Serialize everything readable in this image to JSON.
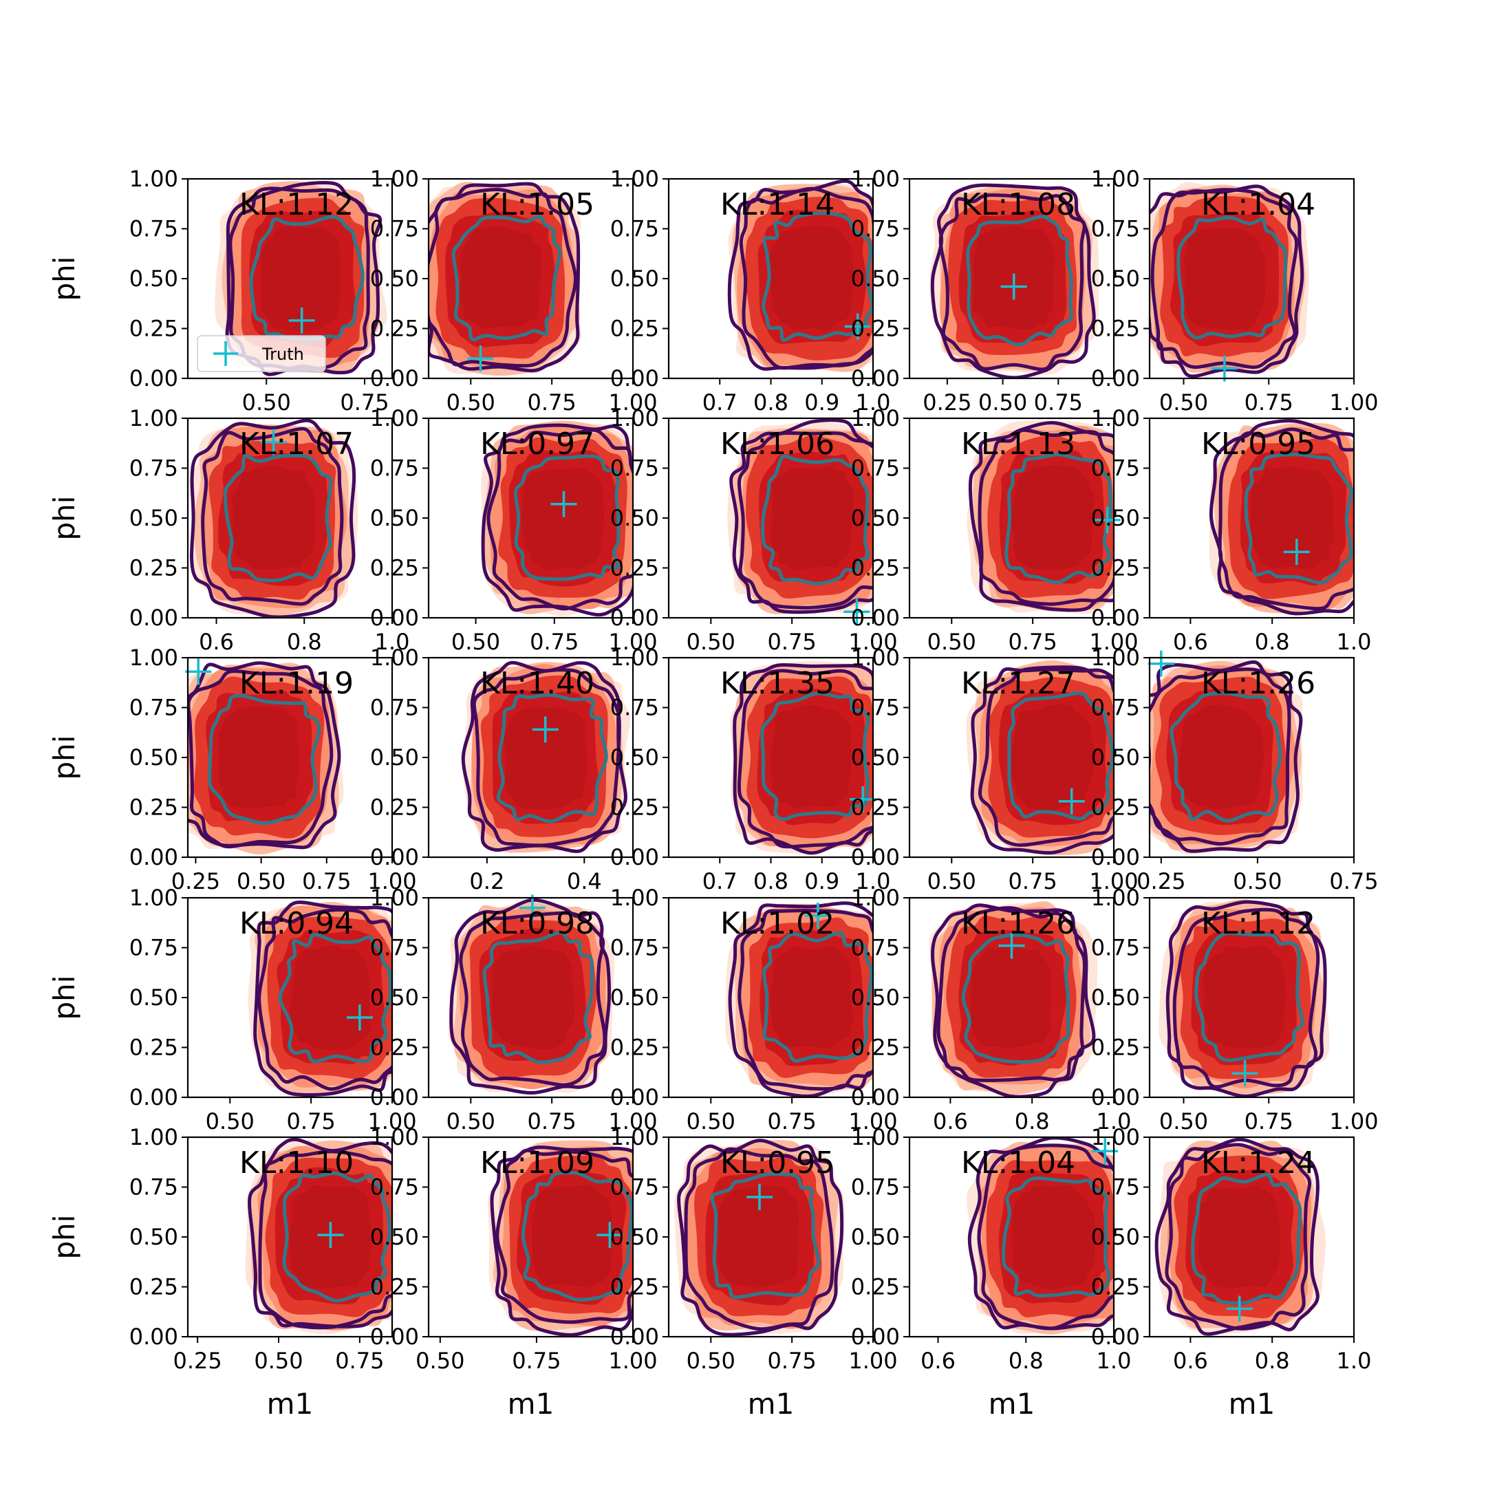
{
  "figure": {
    "legend_label": "Truth",
    "colors": {
      "kde_fill": [
        "#fee5d9",
        "#fcbba1",
        "#fc9272",
        "#e3382c",
        "#cb181d",
        "#bd1519"
      ],
      "outer_contours": "#440a5e",
      "inner_contour": "#2d7a8c",
      "truth_marker": "#17becf"
    }
  },
  "chart_data": [
    {
      "type": "contour",
      "kl_label": "KL:1.12",
      "xlabel": "",
      "ylabel": "phi",
      "xticks": [
        "0.50",
        "0.75"
      ],
      "xlim": [
        0.3,
        0.82
      ],
      "ylim": [
        0,
        1
      ],
      "yticks": [
        "0.00",
        "0.25",
        "0.50",
        "0.75",
        "1.00"
      ],
      "truth": {
        "x": 0.59,
        "y": 0.29
      },
      "legend": true
    },
    {
      "type": "contour",
      "kl_label": "KL:1.05",
      "xlabel": "",
      "ylabel": "",
      "xticks": [
        "0.50",
        "0.75",
        "1.00"
      ],
      "xlim": [
        0.37,
        1.0
      ],
      "ylim": [
        0,
        1
      ],
      "yticks": [
        "0.00",
        "0.25",
        "0.50",
        "0.75",
        "1.00"
      ],
      "truth": {
        "x": 0.53,
        "y": 0.1
      }
    },
    {
      "type": "contour",
      "kl_label": "KL:1.14",
      "xlabel": "",
      "ylabel": "",
      "xticks": [
        "0.7",
        "0.8",
        "0.9",
        "1.0"
      ],
      "xlim": [
        0.6,
        1.0
      ],
      "ylim": [
        0,
        1
      ],
      "yticks": [
        "0.00",
        "0.25",
        "0.50",
        "0.75",
        "1.00"
      ],
      "truth": {
        "x": 0.97,
        "y": 0.26
      }
    },
    {
      "type": "contour",
      "kl_label": "KL:1.08",
      "xlabel": "",
      "ylabel": "",
      "xticks": [
        "0.25",
        "0.50",
        "0.75"
      ],
      "xlim": [
        0.08,
        1.0
      ],
      "ylim": [
        0,
        1
      ],
      "yticks": [
        "0.00",
        "0.25",
        "0.50",
        "0.75",
        "1.00"
      ],
      "truth": {
        "x": 0.55,
        "y": 0.46
      }
    },
    {
      "type": "contour",
      "kl_label": "KL:1.04",
      "xlabel": "",
      "ylabel": "",
      "xticks": [
        "0.50",
        "0.75",
        "1.00"
      ],
      "xlim": [
        0.4,
        1.0
      ],
      "ylim": [
        0,
        1
      ],
      "yticks": [
        "0.00",
        "0.25",
        "0.50",
        "0.75",
        "1.00"
      ],
      "truth": {
        "x": 0.62,
        "y": 0.05
      }
    },
    {
      "type": "contour",
      "kl_label": "KL:1.07",
      "xlabel": "",
      "ylabel": "phi",
      "xticks": [
        "0.6",
        "0.8",
        "1.0"
      ],
      "xlim": [
        0.535,
        1.0
      ],
      "ylim": [
        0,
        1
      ],
      "yticks": [
        "0.00",
        "0.25",
        "0.50",
        "0.75",
        "1.00"
      ],
      "truth": {
        "x": 0.73,
        "y": 0.88
      }
    },
    {
      "type": "contour",
      "kl_label": "KL:0.97",
      "xlabel": "",
      "ylabel": "",
      "xticks": [
        "0.50",
        "0.75",
        "1.00"
      ],
      "xlim": [
        0.35,
        1.0
      ],
      "ylim": [
        0,
        1
      ],
      "yticks": [
        "0.00",
        "0.25",
        "0.50",
        "0.75",
        "1.00"
      ],
      "truth": {
        "x": 0.78,
        "y": 0.57
      }
    },
    {
      "type": "contour",
      "kl_label": "KL:1.06",
      "xlabel": "",
      "ylabel": "",
      "xticks": [
        "0.50",
        "0.75",
        "1.00"
      ],
      "xlim": [
        0.37,
        1.0
      ],
      "ylim": [
        0,
        1
      ],
      "yticks": [
        "0.00",
        "0.25",
        "0.50",
        "0.75",
        "1.00"
      ],
      "truth": {
        "x": 0.95,
        "y": 0.03
      }
    },
    {
      "type": "contour",
      "kl_label": "KL:1.13",
      "xlabel": "",
      "ylabel": "",
      "xticks": [
        "0.50",
        "0.75",
        "1.00"
      ],
      "xlim": [
        0.37,
        1.0
      ],
      "ylim": [
        0,
        1
      ],
      "yticks": [
        "0.00",
        "0.25",
        "0.50",
        "0.75",
        "1.00"
      ],
      "truth": {
        "x": 0.98,
        "y": 0.49
      }
    },
    {
      "type": "contour",
      "kl_label": "KL:0.95",
      "xlabel": "",
      "ylabel": "",
      "xticks": [
        "0.6",
        "0.8",
        "1.0"
      ],
      "xlim": [
        0.5,
        1.0
      ],
      "ylim": [
        0,
        1
      ],
      "yticks": [
        "0.00",
        "0.25",
        "0.50",
        "0.75",
        "1.00"
      ],
      "truth": {
        "x": 0.86,
        "y": 0.33
      }
    },
    {
      "type": "contour",
      "kl_label": "KL:1.19",
      "xlabel": "",
      "ylabel": "phi",
      "xticks": [
        "0.25",
        "0.50",
        "0.75",
        "1.00"
      ],
      "xlim": [
        0.22,
        1.0
      ],
      "ylim": [
        0,
        1
      ],
      "yticks": [
        "0.00",
        "0.25",
        "0.50",
        "0.75",
        "1.00"
      ],
      "truth": {
        "x": 0.26,
        "y": 0.93
      }
    },
    {
      "type": "contour",
      "kl_label": "KL:1.40",
      "xlabel": "",
      "ylabel": "",
      "xticks": [
        "0.2",
        "0.4"
      ],
      "xlim": [
        0.08,
        0.5
      ],
      "ylim": [
        0,
        1
      ],
      "yticks": [
        "0.00",
        "0.25",
        "0.50",
        "0.75",
        "1.00"
      ],
      "truth": {
        "x": 0.32,
        "y": 0.64
      }
    },
    {
      "type": "contour",
      "kl_label": "KL:1.35",
      "xlabel": "",
      "ylabel": "",
      "xticks": [
        "0.7",
        "0.8",
        "0.9",
        "1.0"
      ],
      "xlim": [
        0.6,
        1.0
      ],
      "ylim": [
        0,
        1
      ],
      "yticks": [
        "0.00",
        "0.25",
        "0.50",
        "0.75",
        "1.00"
      ],
      "truth": {
        "x": 0.98,
        "y": 0.29
      }
    },
    {
      "type": "contour",
      "kl_label": "KL:1.27",
      "xlabel": "",
      "ylabel": "",
      "xticks": [
        "0.50",
        "0.75",
        "1.00"
      ],
      "xlim": [
        0.37,
        1.0
      ],
      "ylim": [
        0,
        1
      ],
      "yticks": [
        "0.00",
        "0.25",
        "0.50",
        "0.75",
        "1.00"
      ],
      "truth": {
        "x": 0.87,
        "y": 0.28
      }
    },
    {
      "type": "contour",
      "kl_label": "KL:1.26",
      "xlabel": "",
      "ylabel": "",
      "xticks": [
        "0.25",
        "0.50",
        "0.75"
      ],
      "xlim": [
        0.22,
        0.75
      ],
      "ylim": [
        0,
        1
      ],
      "yticks": [
        "0.00",
        "0.25",
        "0.50",
        "0.75",
        "1.00"
      ],
      "truth": {
        "x": 0.25,
        "y": 0.97
      }
    },
    {
      "type": "contour",
      "kl_label": "KL:0.94",
      "xlabel": "",
      "ylabel": "phi",
      "xticks": [
        "0.50",
        "0.75",
        "1.00"
      ],
      "xlim": [
        0.37,
        1.0
      ],
      "ylim": [
        0,
        1
      ],
      "yticks": [
        "0.00",
        "0.25",
        "0.50",
        "0.75",
        "1.00"
      ],
      "truth": {
        "x": 0.9,
        "y": 0.4
      }
    },
    {
      "type": "contour",
      "kl_label": "KL:0.98",
      "xlabel": "",
      "ylabel": "",
      "xticks": [
        "0.50",
        "0.75",
        "1.00"
      ],
      "xlim": [
        0.37,
        1.0
      ],
      "ylim": [
        0,
        1
      ],
      "yticks": [
        "0.00",
        "0.25",
        "0.50",
        "0.75",
        "1.00"
      ],
      "truth": {
        "x": 0.69,
        "y": 0.95
      }
    },
    {
      "type": "contour",
      "kl_label": "KL:1.02",
      "xlabel": "",
      "ylabel": "",
      "xticks": [
        "0.50",
        "0.75",
        "1.00"
      ],
      "xlim": [
        0.37,
        1.0
      ],
      "ylim": [
        0,
        1
      ],
      "yticks": [
        "0.00",
        "0.25",
        "0.50",
        "0.75",
        "1.00"
      ],
      "truth": {
        "x": 0.83,
        "y": 0.91
      }
    },
    {
      "type": "contour",
      "kl_label": "KL:1.26",
      "xlabel": "",
      "ylabel": "",
      "xticks": [
        "0.6",
        "0.8",
        "1.0"
      ],
      "xlim": [
        0.5,
        1.0
      ],
      "ylim": [
        0,
        1
      ],
      "yticks": [
        "0.00",
        "0.25",
        "0.50",
        "0.75",
        "1.00"
      ],
      "truth": {
        "x": 0.75,
        "y": 0.76
      }
    },
    {
      "type": "contour",
      "kl_label": "KL:1.12",
      "xlabel": "",
      "ylabel": "",
      "xticks": [
        "0.50",
        "0.75",
        "1.00"
      ],
      "xlim": [
        0.4,
        1.0
      ],
      "ylim": [
        0,
        1
      ],
      "yticks": [
        "0.00",
        "0.25",
        "0.50",
        "0.75",
        "1.00"
      ],
      "truth": {
        "x": 0.68,
        "y": 0.12
      }
    },
    {
      "type": "contour",
      "kl_label": "KL:1.10",
      "xlabel": "m1",
      "ylabel": "phi",
      "xticks": [
        "0.25",
        "0.50",
        "0.75"
      ],
      "xlim": [
        0.22,
        0.85
      ],
      "ylim": [
        0,
        1
      ],
      "yticks": [
        "0.00",
        "0.25",
        "0.50",
        "0.75",
        "1.00"
      ],
      "truth": {
        "x": 0.66,
        "y": 0.51
      }
    },
    {
      "type": "contour",
      "kl_label": "KL:1.09",
      "xlabel": "m1",
      "ylabel": "",
      "xticks": [
        "0.50",
        "0.75",
        "1.00"
      ],
      "xlim": [
        0.47,
        1.0
      ],
      "ylim": [
        0,
        1
      ],
      "yticks": [
        "0.00",
        "0.25",
        "0.50",
        "0.75",
        "1.00"
      ],
      "truth": {
        "x": 0.94,
        "y": 0.51
      }
    },
    {
      "type": "contour",
      "kl_label": "KL:0.95",
      "xlabel": "m1",
      "ylabel": "",
      "xticks": [
        "0.50",
        "0.75",
        "1.00"
      ],
      "xlim": [
        0.37,
        1.0
      ],
      "ylim": [
        0,
        1
      ],
      "yticks": [
        "0.00",
        "0.25",
        "0.50",
        "0.75",
        "1.00"
      ],
      "truth": {
        "x": 0.65,
        "y": 0.7
      }
    },
    {
      "type": "contour",
      "kl_label": "KL:1.04",
      "xlabel": "m1",
      "ylabel": "",
      "xticks": [
        "0.6",
        "0.8",
        "1.0"
      ],
      "xlim": [
        0.535,
        1.0
      ],
      "ylim": [
        0,
        1
      ],
      "yticks": [
        "0.00",
        "0.25",
        "0.50",
        "0.75",
        "1.00"
      ],
      "truth": {
        "x": 0.98,
        "y": 0.93
      }
    },
    {
      "type": "contour",
      "kl_label": "KL:1.24",
      "xlabel": "m1",
      "ylabel": "",
      "xticks": [
        "0.6",
        "0.8",
        "1.0"
      ],
      "xlim": [
        0.5,
        1.0
      ],
      "ylim": [
        0,
        1
      ],
      "yticks": [
        "0.00",
        "0.25",
        "0.50",
        "0.75",
        "1.00"
      ],
      "truth": {
        "x": 0.72,
        "y": 0.14
      }
    }
  ]
}
